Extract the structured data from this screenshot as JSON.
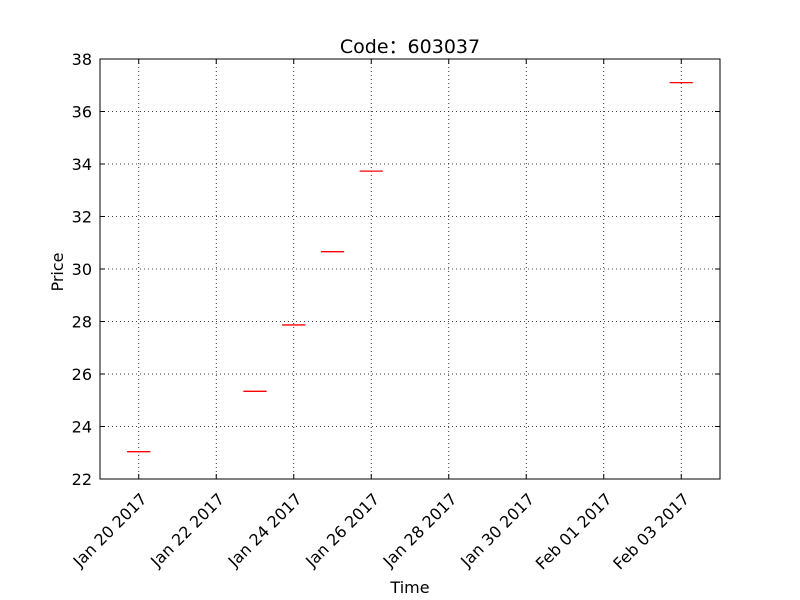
{
  "chart_data": {
    "type": "candlestick",
    "title": "Code：603037",
    "xlabel": "Time",
    "ylabel": "Price",
    "ylim": [
      22,
      38
    ],
    "yticks": [
      22,
      24,
      26,
      28,
      30,
      32,
      34,
      36,
      38
    ],
    "xlim": [
      "2017-01-19",
      "2017-02-04"
    ],
    "xticks": [
      {
        "date": "2017-01-20",
        "label": "Jan 20 2017"
      },
      {
        "date": "2017-01-22",
        "label": "Jan 22 2017"
      },
      {
        "date": "2017-01-24",
        "label": "Jan 24 2017"
      },
      {
        "date": "2017-01-26",
        "label": "Jan 26 2017"
      },
      {
        "date": "2017-01-28",
        "label": "Jan 28 2017"
      },
      {
        "date": "2017-01-30",
        "label": "Jan 30 2017"
      },
      {
        "date": "2017-02-01",
        "label": "Feb 01 2017"
      },
      {
        "date": "2017-02-03",
        "label": "Feb 03 2017"
      }
    ],
    "grid": true,
    "series": [
      {
        "color": "#ff0000",
        "points": [
          {
            "date": "2017-01-20",
            "open": 23.04,
            "high": 23.04,
            "low": 23.04,
            "close": 23.04
          },
          {
            "date": "2017-01-23",
            "open": 25.34,
            "high": 25.34,
            "low": 25.34,
            "close": 25.34
          },
          {
            "date": "2017-01-24",
            "open": 27.87,
            "high": 27.87,
            "low": 27.87,
            "close": 27.87
          },
          {
            "date": "2017-01-25",
            "open": 30.66,
            "high": 30.66,
            "low": 30.66,
            "close": 30.66
          },
          {
            "date": "2017-01-26",
            "open": 33.73,
            "high": 33.73,
            "low": 33.73,
            "close": 33.73
          },
          {
            "date": "2017-02-03",
            "open": 37.1,
            "high": 37.1,
            "low": 37.1,
            "close": 37.1
          }
        ]
      }
    ]
  }
}
